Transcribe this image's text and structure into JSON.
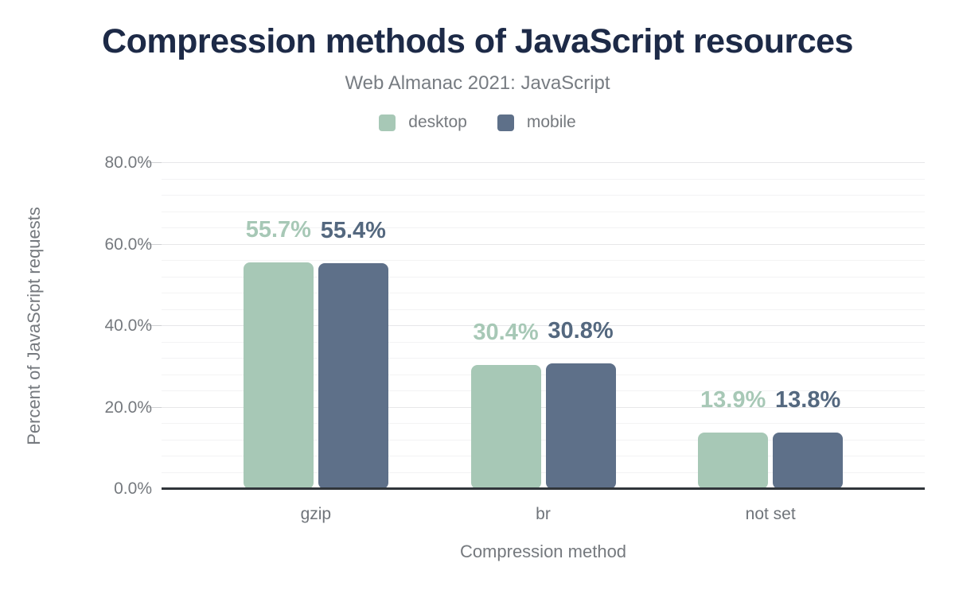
{
  "header": {
    "title": "Compression methods of JavaScript resources",
    "subtitle": "Web Almanac 2021: JavaScript"
  },
  "colors": {
    "title_text": "#1d2a47",
    "muted_text": "#75797e",
    "axis_line": "#30353a",
    "desktop": "#a7c8b6",
    "mobile": "#5e7089"
  },
  "chart_data": {
    "type": "bar",
    "title": "Compression methods of JavaScript resources",
    "subtitle": "Web Almanac 2021: JavaScript",
    "categories": [
      "gzip",
      "br",
      "not set"
    ],
    "series": [
      {
        "name": "desktop",
        "color": "#a7c8b6",
        "label_color": "#a7c8b6",
        "values": [
          55.7,
          30.4,
          13.9
        ]
      },
      {
        "name": "mobile",
        "color": "#5e7089",
        "label_color": "#54687f",
        "values": [
          55.4,
          30.8,
          13.8
        ]
      }
    ],
    "value_labels": [
      [
        "55.7%",
        "30.4%",
        "13.9%"
      ],
      [
        "55.4%",
        "30.8%",
        "13.8%"
      ]
    ],
    "xlabel": "Compression method",
    "ylabel": "Percent of JavaScript requests",
    "ylim": [
      0,
      80
    ],
    "ytick_step": 20,
    "minor_grid_step": 4,
    "ytick_labels": [
      "0.0%",
      "20.0%",
      "40.0%",
      "60.0%",
      "80.0%"
    ],
    "grid": true,
    "legend_position": "top"
  }
}
